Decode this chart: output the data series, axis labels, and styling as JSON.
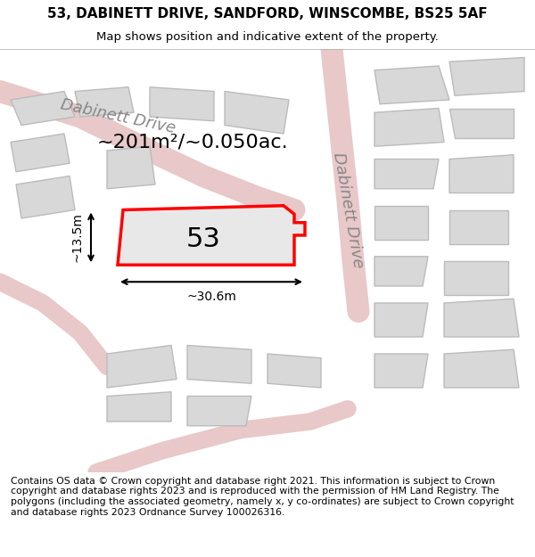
{
  "title_line1": "53, DABINETT DRIVE, SANDFORD, WINSCOMBE, BS25 5AF",
  "title_line2": "Map shows position and indicative extent of the property.",
  "footer_text": "Contains OS data © Crown copyright and database right 2021. This information is subject to Crown copyright and database rights 2023 and is reproduced with the permission of HM Land Registry. The polygons (including the associated geometry, namely x, y co-ordinates) are subject to Crown copyright and database rights 2023 Ordnance Survey 100026316.",
  "area_label": "~201m²/~0.050ac.",
  "number_label": "53",
  "width_label": "~30.6m",
  "height_label": "~13.5m",
  "background_color": "#f5f5f5",
  "map_background": "#f0eeee",
  "building_fill": "#d8d8d8",
  "building_stroke": "#c8c8c8",
  "road_color": "#e8d8d8",
  "highlighted_fill": "#e8e8e8",
  "highlighted_stroke": "#ff0000",
  "title_fontsize": 11,
  "subtitle_fontsize": 9.5,
  "footer_fontsize": 7.8,
  "label_fontsize": 16,
  "number_fontsize": 22,
  "road_label_fontsize": 13
}
